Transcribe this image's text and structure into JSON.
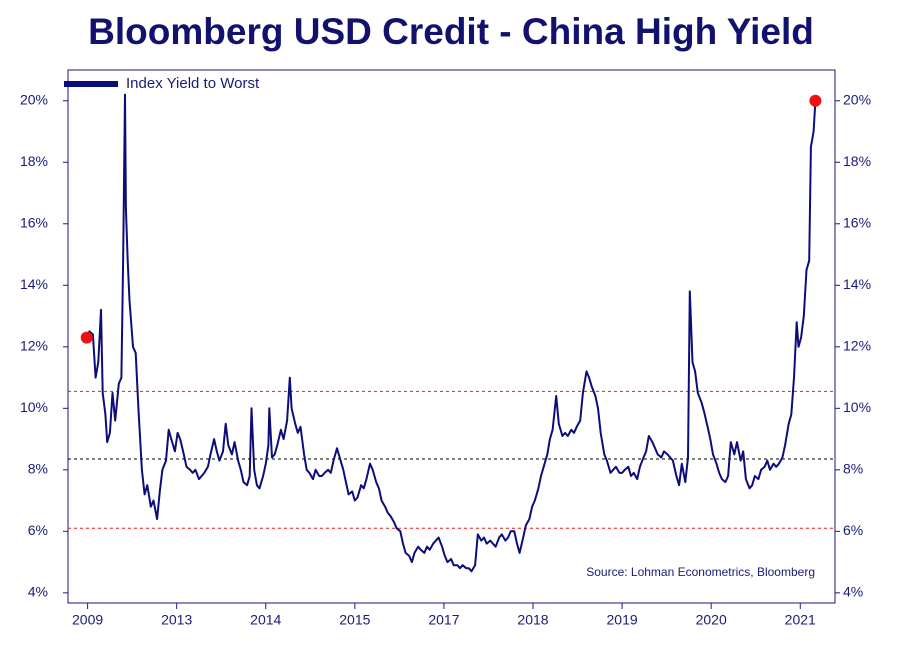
{
  "chart_data": {
    "type": "line",
    "title": "Bloomberg USD Credit - China High Yield",
    "annotation": "Source: Lohman Econometrics, Bloomberg",
    "x": [
      -0.01,
      0.02,
      0.06,
      0.09,
      0.12,
      0.15,
      0.17,
      0.2,
      0.22,
      0.25,
      0.28,
      0.31,
      0.35,
      0.38,
      0.4,
      0.42,
      0.43,
      0.45,
      0.47,
      0.51,
      0.54,
      0.57,
      0.61,
      0.64,
      0.67,
      0.71,
      0.74,
      0.78,
      0.81,
      0.84,
      0.88,
      0.91,
      0.94,
      0.98,
      1.01,
      1.04,
      1.08,
      1.11,
      1.15,
      1.18,
      1.21,
      1.25,
      1.28,
      1.31,
      1.35,
      1.38,
      1.42,
      1.45,
      1.48,
      1.52,
      1.55,
      1.58,
      1.62,
      1.65,
      1.69,
      1.72,
      1.75,
      1.79,
      1.82,
      1.84,
      1.87,
      1.9,
      1.93,
      1.97,
      2.0,
      2.03,
      2.04,
      2.07,
      2.1,
      2.13,
      2.17,
      2.2,
      2.24,
      2.27,
      2.29,
      2.33,
      2.36,
      2.39,
      2.43,
      2.46,
      2.49,
      2.53,
      2.56,
      2.6,
      2.63,
      2.66,
      2.7,
      2.73,
      2.76,
      2.8,
      2.83,
      2.87,
      2.9,
      2.93,
      2.97,
      3.0,
      3.03,
      3.07,
      3.1,
      3.13,
      3.17,
      3.2,
      3.24,
      3.27,
      3.3,
      3.34,
      3.37,
      3.4,
      3.44,
      3.47,
      3.51,
      3.54,
      3.57,
      3.61,
      3.64,
      3.67,
      3.71,
      3.74,
      3.78,
      3.81,
      3.84,
      3.88,
      3.91,
      3.94,
      3.98,
      4.01,
      4.04,
      4.08,
      4.11,
      4.15,
      4.18,
      4.21,
      4.25,
      4.28,
      4.31,
      4.35,
      4.38,
      4.42,
      4.45,
      4.48,
      4.52,
      4.55,
      4.58,
      4.62,
      4.65,
      4.69,
      4.72,
      4.75,
      4.79,
      4.82,
      4.85,
      4.89,
      4.92,
      4.96,
      4.99,
      5.02,
      5.06,
      5.09,
      5.12,
      5.16,
      5.19,
      5.22,
      5.26,
      5.29,
      5.33,
      5.36,
      5.39,
      5.43,
      5.46,
      5.49,
      5.53,
      5.56,
      5.6,
      5.63,
      5.66,
      5.7,
      5.73,
      5.76,
      5.8,
      5.83,
      5.87,
      5.9,
      5.93,
      5.97,
      6.0,
      6.03,
      6.07,
      6.1,
      6.13,
      6.17,
      6.2,
      6.24,
      6.27,
      6.3,
      6.34,
      6.37,
      6.4,
      6.44,
      6.47,
      6.51,
      6.54,
      6.57,
      6.61,
      6.64,
      6.67,
      6.71,
      6.74,
      6.76,
      6.79,
      6.82,
      6.85,
      6.89,
      6.92,
      6.96,
      6.99,
      7.02,
      7.06,
      7.09,
      7.12,
      7.16,
      7.19,
      7.22,
      7.26,
      7.29,
      7.33,
      7.36,
      7.39,
      7.43,
      7.46,
      7.49,
      7.53,
      7.56,
      7.6,
      7.63,
      7.66,
      7.7,
      7.73,
      7.76,
      7.8,
      7.83,
      7.87,
      7.9,
      7.93,
      7.96,
      7.98,
      8.01,
      8.04,
      8.07,
      8.1,
      8.12,
      8.15,
      8.17
    ],
    "series": [
      {
        "name": "Index Yield to Worst",
        "color": "#0d0d7a",
        "values": [
          12.3,
          12.5,
          12.4,
          11.0,
          11.5,
          13.2,
          10.5,
          9.8,
          8.9,
          9.2,
          10.5,
          9.6,
          10.8,
          11.0,
          15.0,
          20.2,
          16.5,
          14.8,
          13.5,
          12.0,
          11.8,
          10.0,
          8.0,
          7.2,
          7.5,
          6.8,
          7.0,
          6.4,
          7.3,
          8.0,
          8.3,
          9.3,
          9.0,
          8.6,
          9.2,
          9.0,
          8.5,
          8.1,
          8.0,
          7.9,
          8.0,
          7.7,
          7.8,
          7.9,
          8.1,
          8.5,
          9.0,
          8.6,
          8.3,
          8.6,
          9.5,
          8.8,
          8.5,
          8.9,
          8.3,
          8.0,
          7.6,
          7.5,
          7.8,
          10.0,
          8.0,
          7.5,
          7.4,
          7.8,
          8.2,
          8.8,
          10.0,
          8.4,
          8.5,
          8.8,
          9.3,
          9.0,
          9.6,
          11.0,
          10.0,
          9.5,
          9.2,
          9.4,
          8.5,
          8.0,
          7.9,
          7.7,
          8.0,
          7.8,
          7.8,
          7.9,
          8.0,
          7.9,
          8.3,
          8.7,
          8.4,
          8.0,
          7.6,
          7.2,
          7.3,
          7.0,
          7.1,
          7.5,
          7.4,
          7.7,
          8.2,
          8.0,
          7.6,
          7.4,
          7.0,
          6.8,
          6.6,
          6.5,
          6.3,
          6.1,
          6.0,
          5.6,
          5.3,
          5.2,
          5.0,
          5.3,
          5.5,
          5.4,
          5.3,
          5.5,
          5.4,
          5.6,
          5.7,
          5.8,
          5.5,
          5.2,
          5.0,
          5.1,
          4.9,
          4.9,
          4.8,
          4.9,
          4.8,
          4.8,
          4.7,
          4.9,
          5.9,
          5.7,
          5.8,
          5.6,
          5.7,
          5.6,
          5.5,
          5.8,
          5.9,
          5.7,
          5.8,
          6.0,
          6.0,
          5.6,
          5.3,
          5.8,
          6.2,
          6.4,
          6.8,
          7.0,
          7.4,
          7.8,
          8.1,
          8.5,
          9.0,
          9.3,
          10.4,
          9.5,
          9.1,
          9.2,
          9.1,
          9.3,
          9.2,
          9.4,
          9.6,
          10.5,
          11.2,
          11.0,
          10.7,
          10.4,
          10.0,
          9.2,
          8.5,
          8.3,
          7.9,
          8.0,
          8.1,
          7.9,
          7.9,
          8.0,
          8.1,
          7.8,
          7.9,
          7.7,
          8.1,
          8.4,
          8.6,
          9.1,
          8.9,
          8.7,
          8.5,
          8.4,
          8.6,
          8.5,
          8.4,
          8.3,
          7.8,
          7.5,
          8.2,
          7.6,
          8.4,
          13.8,
          11.5,
          11.2,
          10.5,
          10.2,
          9.9,
          9.4,
          9.0,
          8.5,
          8.2,
          7.9,
          7.7,
          7.6,
          7.8,
          8.9,
          8.5,
          8.9,
          8.3,
          8.6,
          7.7,
          7.4,
          7.5,
          7.8,
          7.7,
          8.0,
          8.1,
          8.3,
          8.0,
          8.2,
          8.1,
          8.2,
          8.4,
          8.8,
          9.5,
          9.8,
          11.0,
          12.8,
          12.0,
          12.3,
          13.0,
          14.5,
          14.8,
          18.5,
          19.0,
          20.0
        ]
      }
    ],
    "markers": {
      "color": "#ee1111",
      "x": [
        -0.01,
        8.17
      ],
      "values": [
        12.3,
        20.0
      ]
    },
    "hlines": [
      {
        "value": 10.55,
        "color": "#dd2222"
      },
      {
        "value": 8.35,
        "color": "#000000"
      },
      {
        "value": 6.1,
        "color": "#dd2222"
      }
    ],
    "xlim": [
      -0.22,
      8.39
    ],
    "xticks": [
      {
        "value": 0,
        "label": "2009"
      },
      {
        "value": 1,
        "label": "2013"
      },
      {
        "value": 2,
        "label": "2014"
      },
      {
        "value": 3,
        "label": "2015"
      },
      {
        "value": 4,
        "label": "2017"
      },
      {
        "value": 5,
        "label": "2018"
      },
      {
        "value": 6,
        "label": "2019"
      },
      {
        "value": 7,
        "label": "2020"
      },
      {
        "value": 8,
        "label": "2021"
      }
    ],
    "ylim": [
      3.67,
      21.0
    ],
    "yticks": [
      {
        "value": 4,
        "label": "4%"
      },
      {
        "value": 6,
        "label": "6%"
      },
      {
        "value": 8,
        "label": "8%"
      },
      {
        "value": 10,
        "label": "10%"
      },
      {
        "value": 12,
        "label": "12%"
      },
      {
        "value": 14,
        "label": "14%"
      },
      {
        "value": 16,
        "label": "16%"
      },
      {
        "value": 18,
        "label": "18%"
      },
      {
        "value": 20,
        "label": "20%"
      }
    ],
    "legend": "top-left"
  }
}
